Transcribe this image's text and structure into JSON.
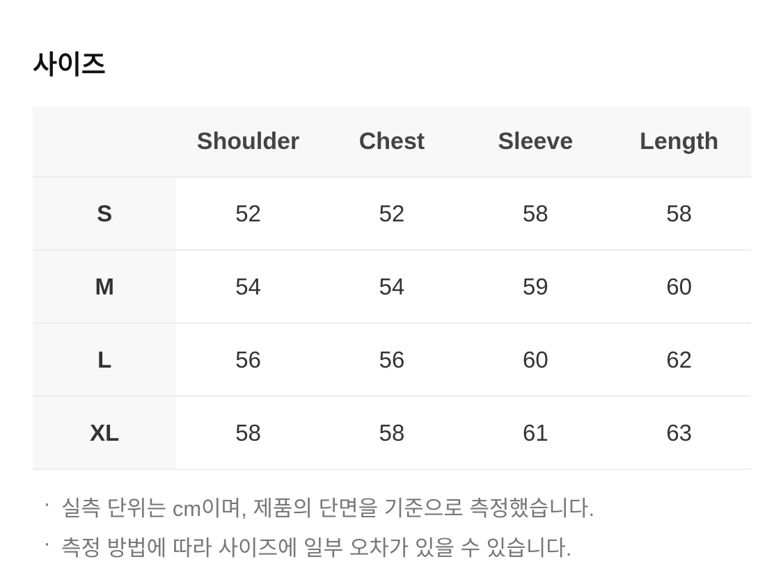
{
  "title": "사이즈",
  "table": {
    "columns": [
      "",
      "Shoulder",
      "Chest",
      "Sleeve",
      "Length"
    ],
    "rows": [
      {
        "size": "S",
        "values": [
          "52",
          "52",
          "58",
          "58"
        ]
      },
      {
        "size": "M",
        "values": [
          "54",
          "54",
          "59",
          "60"
        ]
      },
      {
        "size": "L",
        "values": [
          "56",
          "56",
          "60",
          "62"
        ]
      },
      {
        "size": "XL",
        "values": [
          "58",
          "58",
          "61",
          "63"
        ]
      }
    ]
  },
  "notes": [
    "실측 단위는 cm이며, 제품의 단면을 기준으로 측정했습니다.",
    "측정 방법에 따라 사이즈에 일부 오차가 있을 수 있습니다."
  ],
  "bullet": "·"
}
